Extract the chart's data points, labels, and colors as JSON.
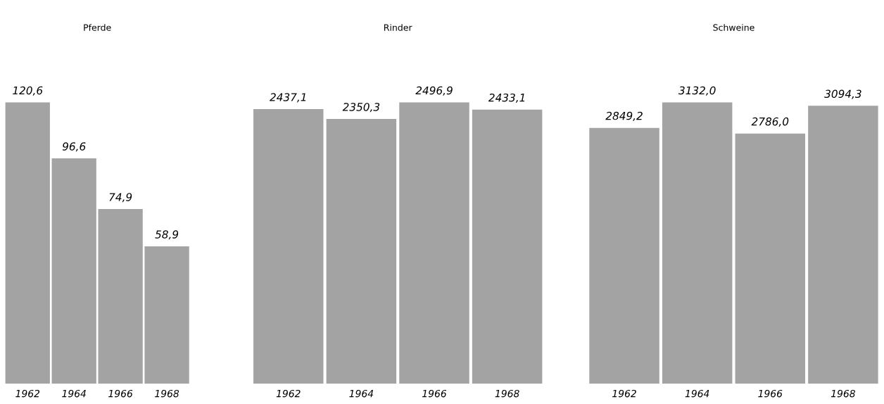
{
  "chart_data": [
    {
      "type": "bar",
      "title": "Pferde",
      "categories": [
        "1962",
        "1964",
        "1966",
        "1968"
      ],
      "values": [
        120.6,
        96.6,
        74.9,
        58.9
      ],
      "value_labels": [
        "120,6",
        "96,6",
        "74,9",
        "58,9"
      ],
      "color": "#a3a3a3"
    },
    {
      "type": "bar",
      "title": "Rinder",
      "categories": [
        "1962",
        "1964",
        "1966",
        "1968"
      ],
      "values": [
        2437.1,
        2350.3,
        2496.9,
        2433.1
      ],
      "value_labels": [
        "2437,1",
        "2350,3",
        "2496,9",
        "2433,1"
      ],
      "color": "#a3a3a3"
    },
    {
      "type": "bar",
      "title": "Schweine",
      "categories": [
        "1962",
        "1964",
        "1966",
        "1968"
      ],
      "values": [
        2849.2,
        3132.0,
        2786.0,
        3094.3
      ],
      "value_labels": [
        "2849,2",
        "3132,0",
        "2786,0",
        "3094,3"
      ],
      "color": "#a3a3a3"
    }
  ]
}
